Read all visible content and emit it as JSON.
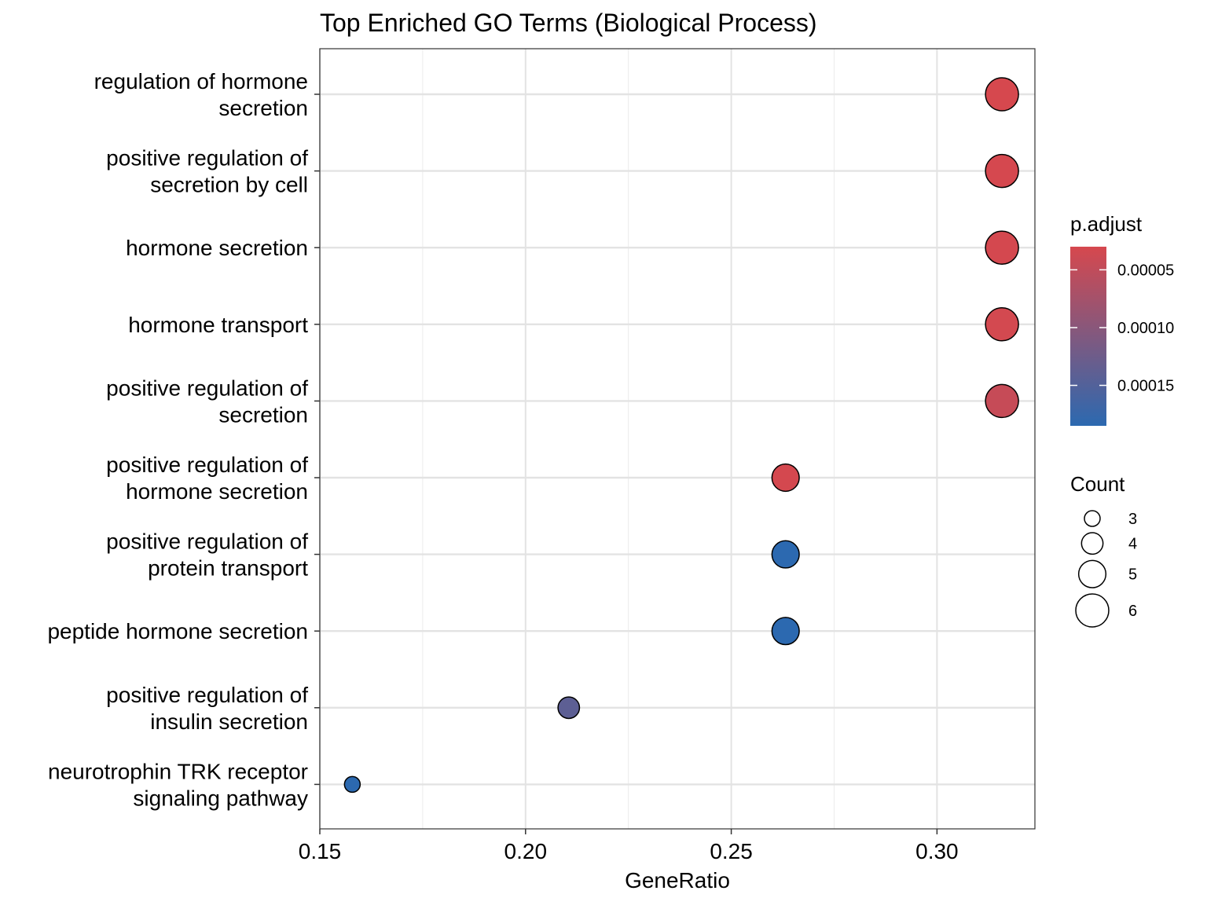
{
  "chart_data": {
    "type": "scatter",
    "title": "Top Enriched GO Terms (Biological Process)",
    "xlabel": "GeneRatio",
    "ylabel": "",
    "xlim": [
      0.15,
      0.3238
    ],
    "x_ticks": [
      "0.15",
      "0.20",
      "0.25",
      "0.30"
    ],
    "x_tick_values": [
      0.15,
      0.2,
      0.25,
      0.3
    ],
    "grid": true,
    "points": [
      {
        "term": "regulation of hormone secretion",
        "label_lines": [
          "regulation of hormone",
          "secretion"
        ],
        "gene_ratio": 0.3158,
        "count": 6,
        "p_adjust": 3e-05
      },
      {
        "term": "positive regulation of secretion by cell",
        "label_lines": [
          "positive regulation of",
          "secretion by cell"
        ],
        "gene_ratio": 0.3158,
        "count": 6,
        "p_adjust": 3.1e-05
      },
      {
        "term": "hormone secretion",
        "label_lines": [
          "hormone secretion"
        ],
        "gene_ratio": 0.3158,
        "count": 6,
        "p_adjust": 3.2e-05
      },
      {
        "term": "hormone transport",
        "label_lines": [
          "hormone transport"
        ],
        "gene_ratio": 0.3158,
        "count": 6,
        "p_adjust": 3.3e-05
      },
      {
        "term": "positive regulation of secretion",
        "label_lines": [
          "positive regulation of",
          "secretion"
        ],
        "gene_ratio": 0.3158,
        "count": 6,
        "p_adjust": 4.5e-05
      },
      {
        "term": "positive regulation of hormone secretion",
        "label_lines": [
          "positive regulation of",
          "hormone secretion"
        ],
        "gene_ratio": 0.2632,
        "count": 5,
        "p_adjust": 3.2e-05
      },
      {
        "term": "positive regulation of protein transport",
        "label_lines": [
          "positive regulation of",
          "protein transport"
        ],
        "gene_ratio": 0.2632,
        "count": 5,
        "p_adjust": 0.000185
      },
      {
        "term": "peptide hormone secretion",
        "label_lines": [
          "peptide hormone secretion"
        ],
        "gene_ratio": 0.2632,
        "count": 5,
        "p_adjust": 0.000185
      },
      {
        "term": "positive regulation of insulin secretion",
        "label_lines": [
          "positive regulation of",
          "insulin secretion"
        ],
        "gene_ratio": 0.2105,
        "count": 4,
        "p_adjust": 0.00014
      },
      {
        "term": "neurotrophin TRK receptor signaling pathway",
        "label_lines": [
          "neurotrophin TRK receptor",
          "signaling pathway"
        ],
        "gene_ratio": 0.1579,
        "count": 3,
        "p_adjust": 0.000185
      }
    ],
    "color_legend": {
      "title": "p.adjust",
      "ticks": [
        {
          "label": "0.00005",
          "value": 5e-05
        },
        {
          "label": "0.00010",
          "value": 0.0001
        },
        {
          "label": "0.00015",
          "value": 0.00015
        }
      ],
      "range": [
        3e-05,
        0.000185
      ],
      "low_color": "#d6484e",
      "high_color": "#2c69b0",
      "placement": "right"
    },
    "size_legend": {
      "title": "Count",
      "entries": [
        {
          "label": "3",
          "value": 3
        },
        {
          "label": "4",
          "value": 4
        },
        {
          "label": "5",
          "value": 5
        },
        {
          "label": "6",
          "value": 6
        }
      ],
      "placement": "right"
    }
  }
}
